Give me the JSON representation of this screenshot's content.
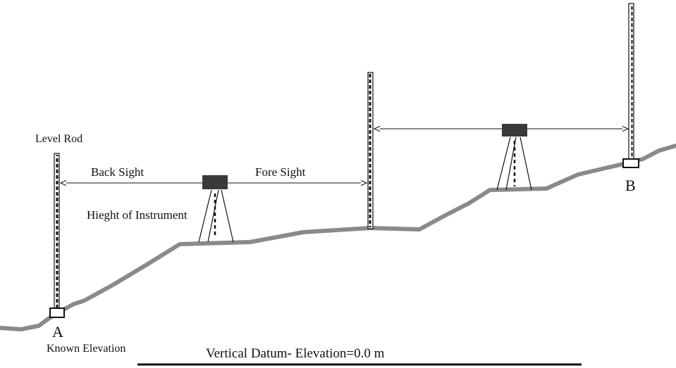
{
  "labels": {
    "level_rod": "Level Rod",
    "back_sight": "Back Sight",
    "fore_sight": "Fore Sight",
    "height_of_instrument": "Hieght of Instrument",
    "point_a": "A",
    "point_b": "B",
    "known_elevation": "Known Elevation",
    "datum": "Vertical Datum- Elevation=0.0 m"
  },
  "colors": {
    "ground": "#8a8a8a",
    "instrument": "#3a3a3a",
    "line": "#111111"
  }
}
